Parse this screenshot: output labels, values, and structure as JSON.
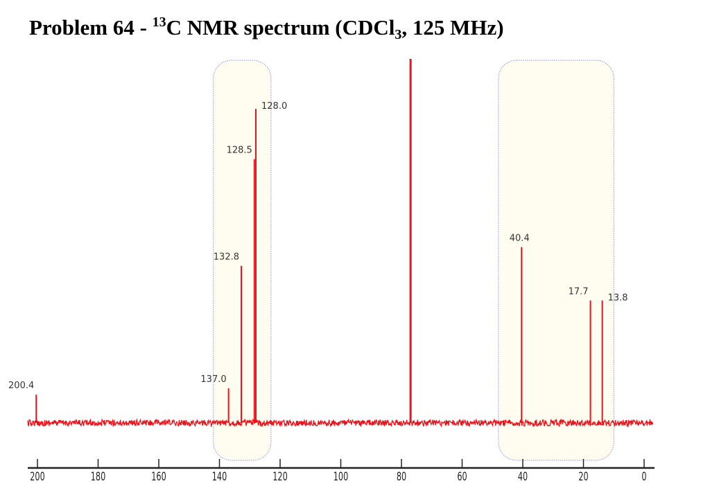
{
  "title": {
    "prefix": "Problem 64 - ",
    "isotope": "13",
    "main": "C NMR spectrum (CDCl",
    "sub": "3",
    "suffix": ", 125 MHz)"
  },
  "colors": {
    "spectrum": "#e8141c",
    "highlight_fill": "#fffdf0",
    "highlight_border": "#8c8cf0",
    "axis": "#222222"
  },
  "chart_data": {
    "type": "line",
    "title": "Problem 64 - 13C NMR spectrum (CDCl3, 125 MHz)",
    "xlabel": "",
    "ylabel": "",
    "xlim": [
      200,
      0
    ],
    "x_reversed": true,
    "ticks": [
      "200",
      "180",
      "160",
      "140",
      "120",
      "100",
      "80",
      "60",
      "40",
      "20",
      "0"
    ],
    "tick_values": [
      200,
      180,
      160,
      140,
      120,
      100,
      80,
      60,
      40,
      20,
      0
    ],
    "peaks": [
      {
        "ppm": 200.4,
        "label": "200.4",
        "intensity": 9
      },
      {
        "ppm": 137.0,
        "label": "137.0",
        "intensity": 11
      },
      {
        "ppm": 132.8,
        "label": "132.8",
        "intensity": 50
      },
      {
        "ppm": 128.5,
        "label": "128.5",
        "intensity": 84
      },
      {
        "ppm": 128.0,
        "label": "128.0",
        "intensity": 100
      },
      {
        "ppm": 77.0,
        "label": "",
        "intensity": 116
      },
      {
        "ppm": 40.4,
        "label": "40.4",
        "intensity": 56
      },
      {
        "ppm": 17.7,
        "label": "17.7",
        "intensity": 39
      },
      {
        "ppm": 13.8,
        "label": "13.8",
        "intensity": 39
      }
    ],
    "highlight_regions": [
      [
        142,
        123
      ],
      [
        48,
        10
      ]
    ],
    "grid": false,
    "legend": "none"
  }
}
